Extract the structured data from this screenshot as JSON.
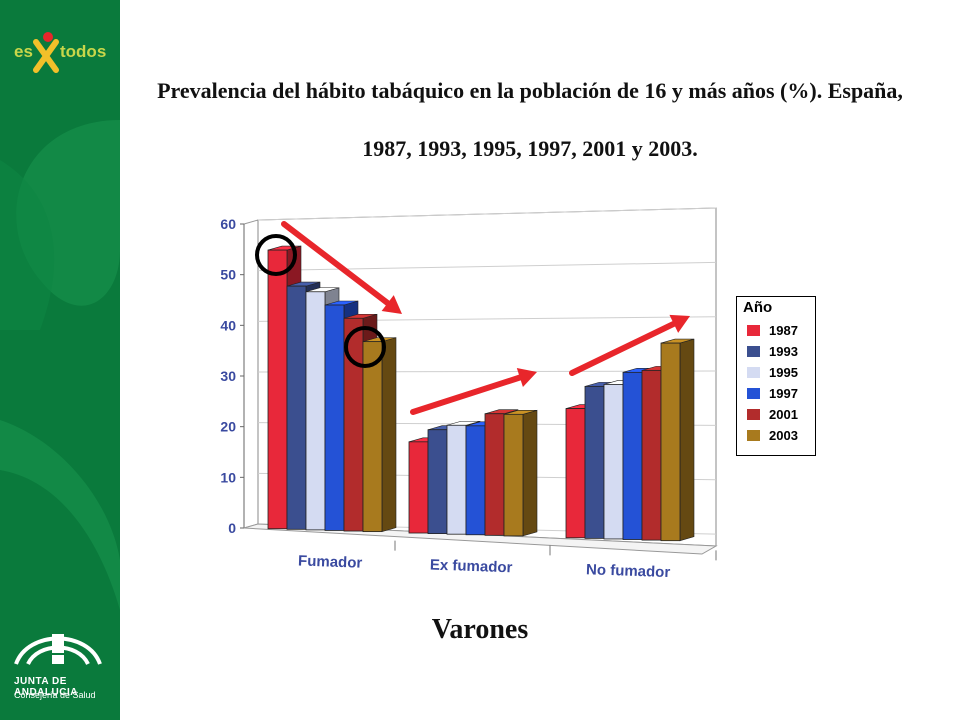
{
  "title": "Prevalencia del hábito tabáquico en la población de 16 y más años (%).  España, 1987, 1993, 1995, 1997, 2001 y 2003.",
  "subtitle": "Varones",
  "branding": {
    "top_logo_left": "es",
    "top_logo_right": "todos",
    "bottom_logo_line1": "JUNTA DE ANDALUCIA",
    "bottom_logo_line2": "Consejería de Salud"
  },
  "colors": {
    "sidebar": "#0a7a3c",
    "arrow": "#e8262b"
  },
  "chart_data": {
    "type": "bar",
    "title": "",
    "xlabel": "",
    "ylabel": "",
    "ylim": [
      0,
      60
    ],
    "yticks": [
      0,
      10,
      20,
      30,
      40,
      50,
      60
    ],
    "grid": true,
    "legend_title": "Año",
    "legend_position": "right",
    "categories": [
      "Fumador",
      "Ex fumador",
      "No fumador"
    ],
    "series": [
      {
        "name": "1987",
        "color": "#e8283a",
        "values": [
          55.0,
          18.0,
          25.5
        ]
      },
      {
        "name": "1993",
        "color": "#3b4f8f",
        "values": [
          48.0,
          20.5,
          30.0
        ]
      },
      {
        "name": "1995",
        "color": "#d4dbf2",
        "values": [
          47.0,
          21.5,
          30.5
        ]
      },
      {
        "name": "1997",
        "color": "#2452d6",
        "values": [
          44.5,
          21.5,
          33.0
        ]
      },
      {
        "name": "2001",
        "color": "#b22c2c",
        "values": [
          42.0,
          24.0,
          33.5
        ]
      },
      {
        "name": "2003",
        "color": "#a87a1e",
        "values": [
          37.5,
          24.0,
          39.0
        ]
      }
    ]
  }
}
